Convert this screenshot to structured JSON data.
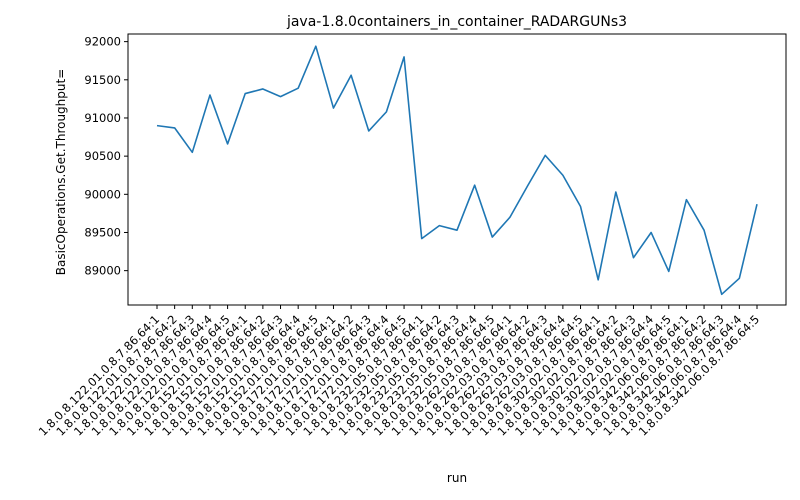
{
  "chart_data": {
    "type": "line",
    "title": "java-1.8.0containers_in_container_RADARGUNs3",
    "xlabel": "run",
    "ylabel": "BasicOperations.Get.Throughput=",
    "ylim": [
      88550,
      92100
    ],
    "yticks": [
      89000,
      89500,
      90000,
      90500,
      91000,
      91500,
      92000
    ],
    "grid": false,
    "line_color": "#1f77b4",
    "categories": [
      "1.8.0.8.122.01.0.8.7.86.64:1",
      "1.8.0.8.122.01.0.8.7.86.64:2",
      "1.8.0.8.122.01.0.8.7.86.64:3",
      "1.8.0.8.122.01.0.8.7.86.64:4",
      "1.8.0.8.122.01.0.8.7.86.64:5",
      "1.8.0.8.152.01.0.8.7.86.64:1",
      "1.8.0.8.152.01.0.8.7.86.64:2",
      "1.8.0.8.152.01.0.8.7.86.64:3",
      "1.8.0.8.152.01.0.8.7.86.64:4",
      "1.8.0.8.152.01.0.8.7.86.64:5",
      "1.8.0.8.172.01.0.8.7.86.64:1",
      "1.8.0.8.172.01.0.8.7.86.64:2",
      "1.8.0.8.172.01.0.8.7.86.64:3",
      "1.8.0.8.172.01.0.8.7.86.64:4",
      "1.8.0.8.172.01.0.8.7.86.64:5",
      "1.8.0.8.232.05.0.8.7.86.64:1",
      "1.8.0.8.232.05.0.8.7.86.64:2",
      "1.8.0.8.232.05.0.8.7.86.64:3",
      "1.8.0.8.232.05.0.8.7.86.64:4",
      "1.8.0.8.232.05.0.8.7.86.64:5",
      "1.8.0.8.262.03.0.8.7.86.64:1",
      "1.8.0.8.262.03.0.8.7.86.64:2",
      "1.8.0.8.262.03.0.8.7.86.64:3",
      "1.8.0.8.262.03.0.8.7.86.64:4",
      "1.8.0.8.262.03.0.8.7.86.64:5",
      "1.8.0.8.302.02.0.8.7.86.64:1",
      "1.8.0.8.302.02.0.8.7.86.64:2",
      "1.8.0.8.302.02.0.8.7.86.64:3",
      "1.8.0.8.302.02.0.8.7.86.64:4",
      "1.8.0.8.302.02.0.8.7.86.64:5",
      "1.8.0.8.342.06.0.8.7.86.64:1",
      "1.8.0.8.342.06.0.8.7.86.64:2",
      "1.8.0.8.342.06.0.8.7.86.64:3",
      "1.8.0.8.342.06.0.8.7.86.64:4",
      "1.8.0.8.342.06.0.8.7.86.64:5"
    ],
    "values": [
      90900,
      90870,
      90550,
      91300,
      90660,
      91320,
      91380,
      91280,
      91390,
      91940,
      91130,
      91560,
      90830,
      91080,
      91800,
      89420,
      89590,
      89530,
      90120,
      89440,
      89700,
      90110,
      90510,
      90250,
      89840,
      88880,
      90030,
      89170,
      89500,
      88990,
      89930,
      89530,
      88690,
      88900,
      89870
    ]
  }
}
